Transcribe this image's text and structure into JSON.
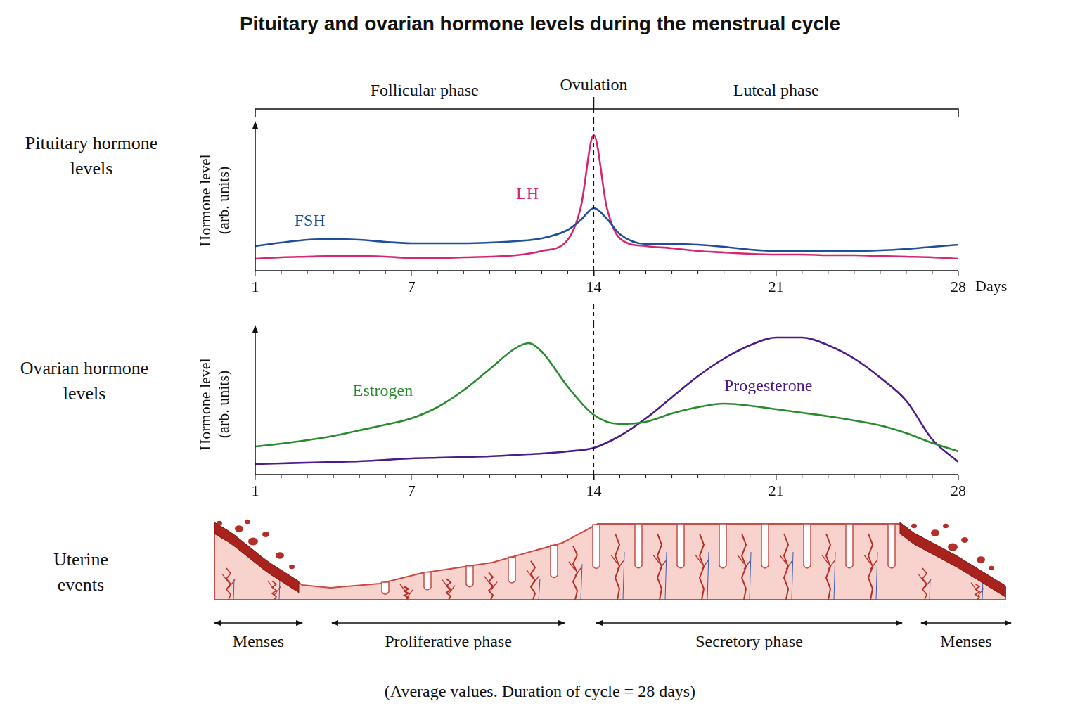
{
  "title": "Pituitary and ovarian hormone levels during the menstrual cycle",
  "cycle_phases": {
    "labels": [
      "Follicular phase",
      "Ovulation",
      "Luteal phase"
    ],
    "ovulation_day": 14
  },
  "chart_data": [
    {
      "type": "line",
      "panel_label": "Pituitary hormone levels",
      "ylabel": "Hormone level (arb. units)",
      "xlabel": "Days",
      "x": [
        1,
        2,
        3,
        4,
        5,
        6,
        7,
        8,
        9,
        10,
        11,
        12,
        13,
        13.5,
        14,
        14.5,
        15,
        16,
        17,
        18,
        19,
        20,
        21,
        22,
        23,
        24,
        25,
        26,
        27,
        28
      ],
      "xlim": [
        1,
        28
      ],
      "xticks": [
        1,
        7,
        14,
        21,
        28
      ],
      "ylim": [
        0,
        10
      ],
      "tick_labels": "x",
      "grid": false,
      "series": [
        {
          "name": "FSH",
          "color": "#1f4e9c",
          "values": [
            1.75,
            2.0,
            2.2,
            2.25,
            2.2,
            2.05,
            1.95,
            1.95,
            1.95,
            2.0,
            2.1,
            2.3,
            2.9,
            3.6,
            4.45,
            3.7,
            2.6,
            1.9,
            1.9,
            1.85,
            1.7,
            1.5,
            1.4,
            1.4,
            1.4,
            1.4,
            1.45,
            1.55,
            1.7,
            1.85
          ]
        },
        {
          "name": "LH",
          "color": "#d6276e",
          "values": [
            0.85,
            0.95,
            1.0,
            1.05,
            1.05,
            1.0,
            0.9,
            0.9,
            0.95,
            1.0,
            1.1,
            1.4,
            2.2,
            4.5,
            9.65,
            4.5,
            2.3,
            1.75,
            1.6,
            1.4,
            1.3,
            1.2,
            1.15,
            1.15,
            1.1,
            1.1,
            1.05,
            1.0,
            0.95,
            0.85
          ]
        }
      ]
    },
    {
      "type": "line",
      "panel_label": "Ovarian hormone levels",
      "ylabel": "Hormone level (arb. units)",
      "x": [
        1,
        2,
        3,
        4,
        5,
        6,
        7,
        8,
        9,
        10,
        11,
        11.5,
        12,
        13,
        14,
        15,
        16,
        17,
        18,
        19,
        20,
        21,
        22,
        23,
        24,
        25,
        26,
        27,
        28
      ],
      "xlim": [
        1,
        28
      ],
      "xticks": [
        1,
        7,
        14,
        21,
        28
      ],
      "ylim": [
        0,
        10
      ],
      "tick_labels": "x",
      "grid": false,
      "series": [
        {
          "name": "Estrogen",
          "color": "#2a8a2e",
          "values": [
            2.0,
            2.2,
            2.45,
            2.75,
            3.15,
            3.55,
            4.0,
            4.8,
            6.0,
            7.5,
            9.0,
            9.35,
            8.75,
            6.25,
            4.25,
            3.6,
            3.75,
            4.35,
            4.8,
            5.05,
            4.9,
            4.65,
            4.4,
            4.15,
            3.85,
            3.5,
            2.95,
            2.25,
            1.65
          ]
        },
        {
          "name": "Progesterone",
          "color": "#4b1a8c",
          "values": [
            0.75,
            0.8,
            0.85,
            0.9,
            0.95,
            1.05,
            1.15,
            1.2,
            1.25,
            1.3,
            1.4,
            1.45,
            1.5,
            1.65,
            1.9,
            2.75,
            4.0,
            5.5,
            7.0,
            8.25,
            9.2,
            9.75,
            9.75,
            9.2,
            8.25,
            6.9,
            5.25,
            2.5,
            0.9
          ]
        }
      ]
    }
  ],
  "uterine_events": {
    "label": "Uterine events",
    "phases": [
      "Menses",
      "Proliferative phase",
      "Secretory phase",
      "Menses"
    ]
  },
  "footnote": "(Average values. Duration of cycle = 28 days)"
}
